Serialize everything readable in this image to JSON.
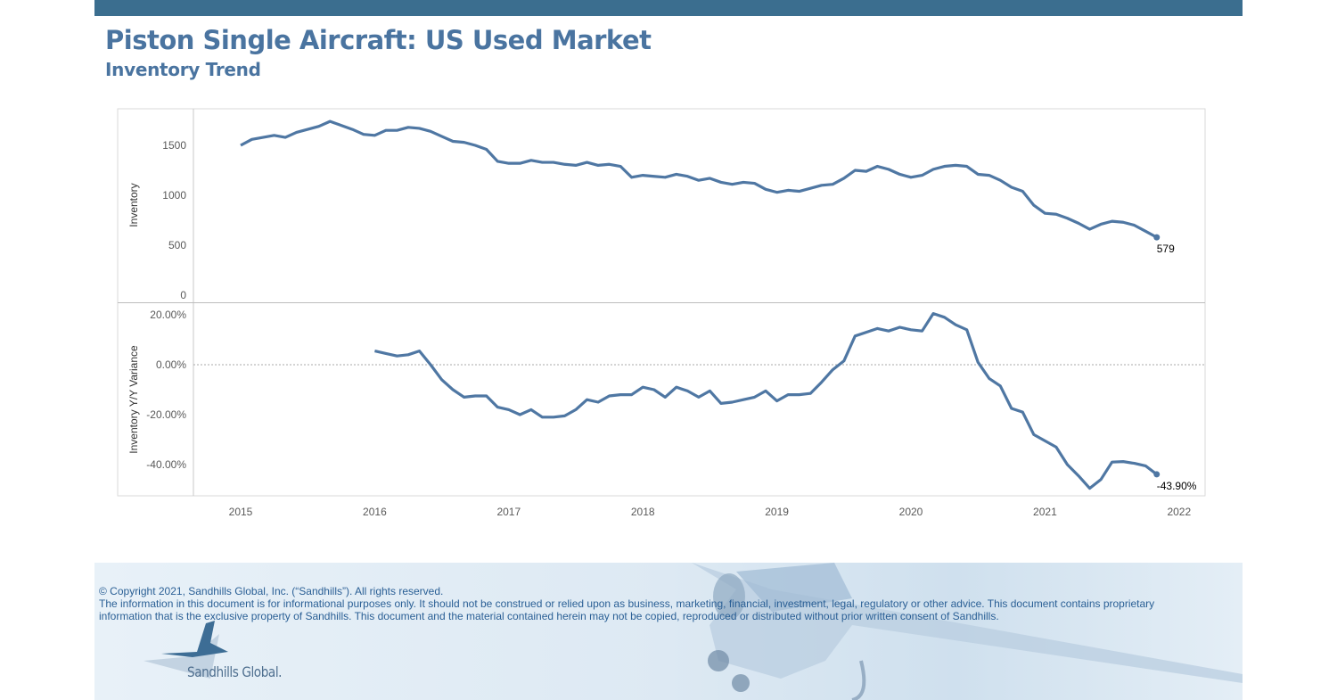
{
  "header": {
    "title": "Piston Single Aircraft:  US Used Market",
    "subtitle": "Inventory Trend"
  },
  "colors": {
    "accent": "#3b6e8f",
    "title": "#4a74a0",
    "line": "#4f77a3"
  },
  "chart_data": [
    {
      "type": "line",
      "ylabel": "Inventory",
      "ylim": [
        0,
        1800
      ],
      "yticks": [
        "0",
        "500",
        "1000",
        "1500"
      ],
      "ytick_values": [
        0,
        500,
        1000,
        1500
      ],
      "start": "2015-01",
      "frequency": "monthly",
      "values": [
        1500,
        1560,
        1580,
        1600,
        1580,
        1630,
        1660,
        1690,
        1740,
        1700,
        1660,
        1610,
        1600,
        1650,
        1650,
        1680,
        1670,
        1640,
        1590,
        1540,
        1530,
        1500,
        1460,
        1340,
        1320,
        1320,
        1350,
        1330,
        1330,
        1310,
        1300,
        1330,
        1300,
        1310,
        1290,
        1180,
        1200,
        1190,
        1180,
        1210,
        1190,
        1150,
        1170,
        1130,
        1110,
        1130,
        1120,
        1060,
        1030,
        1050,
        1040,
        1070,
        1100,
        1110,
        1170,
        1250,
        1240,
        1290,
        1260,
        1210,
        1180,
        1200,
        1260,
        1290,
        1300,
        1290,
        1210,
        1200,
        1150,
        1080,
        1040,
        900,
        820,
        810,
        770,
        720,
        660,
        710,
        740,
        730,
        700,
        640,
        579
      ],
      "end_label": "579"
    },
    {
      "type": "line",
      "ylabel": "Inventory Y/Y Variance",
      "ylim": [
        -55,
        25
      ],
      "yticks": [
        "20.00%",
        "0.00%",
        "-20.00%",
        "-40.00%"
      ],
      "ytick_values": [
        20,
        0,
        -20,
        -40
      ],
      "reference_line": 0,
      "start": "2016-01",
      "frequency": "monthly",
      "values": [
        5.5,
        4.5,
        3.5,
        4,
        5.5,
        0,
        -6,
        -10,
        -13,
        -12.5,
        -12.5,
        -17,
        -18,
        -20,
        -18,
        -21,
        -21,
        -20.5,
        -18,
        -14,
        -15,
        -12.5,
        -12,
        -12,
        -9,
        -10,
        -13,
        -9,
        -10.5,
        -13,
        -10.5,
        -15.5,
        -15,
        -14,
        -13,
        -10.5,
        -14.5,
        -12,
        -12,
        -11.5,
        -7,
        -2,
        1.5,
        11.5,
        13,
        14.5,
        13.5,
        15,
        14,
        13.5,
        20.5,
        19,
        16,
        14,
        1,
        -5.5,
        -8.5,
        -17.5,
        -19,
        -28,
        -30.5,
        -33,
        -40,
        -44.5,
        -49.5,
        -46,
        -39,
        -38.8,
        -39.5,
        -40.5,
        -43.9
      ],
      "end_label": "-43.90%"
    }
  ],
  "xaxis": {
    "ticks": [
      "2015",
      "2016",
      "2017",
      "2018",
      "2019",
      "2020",
      "2021",
      "2022"
    ]
  },
  "footer": {
    "copyright": "© Copyright 2021, Sandhills Global, Inc. (“Sandhills”). All rights reserved.",
    "disclaimer_1": "The information in this document is for informational purposes only.  It should not be construed or relied upon as business, marketing, financial, investment, legal, regulatory or other advice. This document contains proprietary",
    "disclaimer_2": "information that is the exclusive property of Sandhills. This document and the material contained herein may not be copied, reproduced or distributed without prior written consent of Sandhills.",
    "logo_text": "Sandhills Global."
  }
}
